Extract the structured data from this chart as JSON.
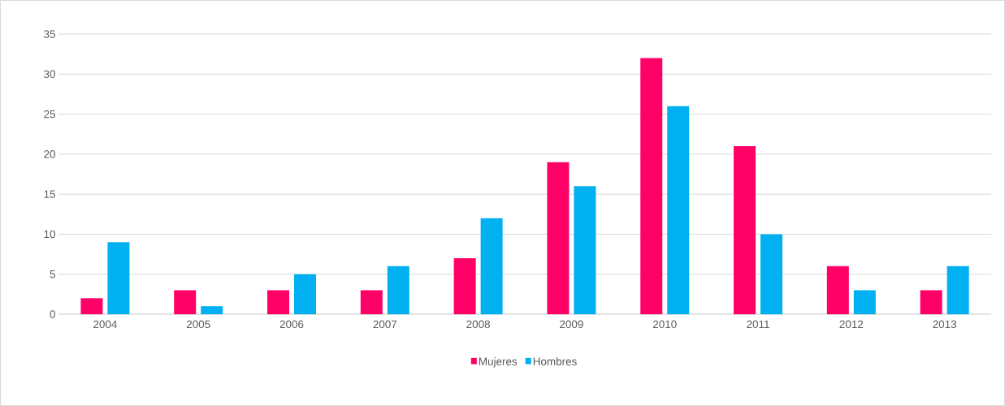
{
  "chart_data": {
    "type": "bar",
    "categories": [
      "2004",
      "2005",
      "2006",
      "2007",
      "2008",
      "2009",
      "2010",
      "2011",
      "2012",
      "2013"
    ],
    "series": [
      {
        "name": "Mujeres",
        "color": "#ff0066",
        "values": [
          2,
          3,
          3,
          3,
          7,
          19,
          32,
          21,
          6,
          3
        ]
      },
      {
        "name": "Hombres",
        "color": "#00b0f0",
        "values": [
          9,
          1,
          5,
          6,
          12,
          16,
          26,
          10,
          3,
          6
        ]
      }
    ],
    "ylim": [
      0,
      35
    ],
    "yticks": [
      0,
      5,
      10,
      15,
      20,
      25,
      30,
      35
    ],
    "grid": "y",
    "legend": "bottom"
  }
}
